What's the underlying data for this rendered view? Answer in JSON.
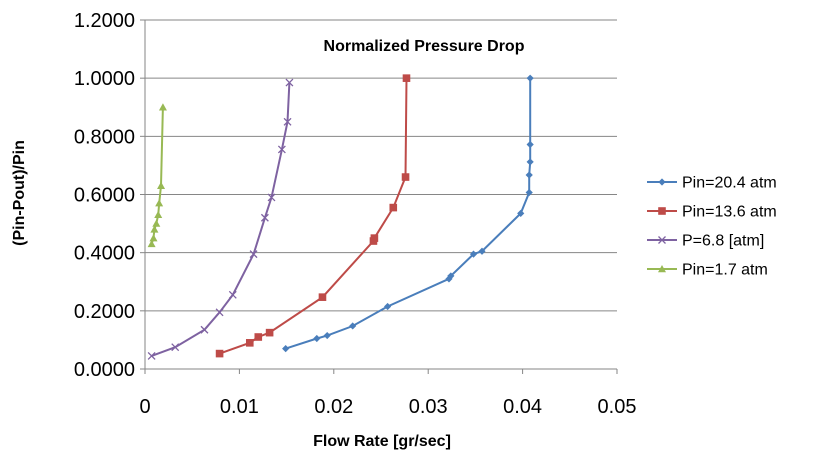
{
  "chart_data": {
    "type": "scatter",
    "title": "Normalized Pressure Drop",
    "xlabel": "Flow Rate [gr/sec]",
    "ylabel": "(Pin-Pout)/Pin",
    "xlim": [
      0,
      0.05
    ],
    "ylim": [
      0,
      1.2
    ],
    "x_ticks": [
      "0",
      "0.01",
      "0.02",
      "0.03",
      "0.04",
      "0.05"
    ],
    "y_ticks": [
      "0.0000",
      "0.2000",
      "0.4000",
      "0.6000",
      "0.8000",
      "1.0000",
      "1.2000"
    ],
    "grid": "horizontal",
    "legend_position": "right",
    "series": [
      {
        "name": "Pin=20.4 atm",
        "color": "#4a7ebb",
        "marker": "diamond",
        "x": [
          0.0149,
          0.0182,
          0.0193,
          0.022,
          0.0257,
          0.0322,
          0.0324,
          0.0348,
          0.0357,
          0.0398,
          0.0407,
          0.0407,
          0.0408,
          0.0408,
          0.0408
        ],
        "y": [
          0.07,
          0.105,
          0.115,
          0.148,
          0.215,
          0.31,
          0.32,
          0.395,
          0.405,
          0.535,
          0.607,
          0.667,
          0.712,
          0.772,
          1.0
        ]
      },
      {
        "name": "Pin=13.6 atm",
        "color": "#be4b48",
        "marker": "square",
        "x": [
          0.0079,
          0.0111,
          0.012,
          0.0132,
          0.0188,
          0.0242,
          0.0243,
          0.0263,
          0.0276,
          0.0277
        ],
        "y": [
          0.053,
          0.09,
          0.11,
          0.125,
          0.247,
          0.44,
          0.45,
          0.555,
          0.66,
          1.0
        ]
      },
      {
        "name": "P=6.8 [atm]",
        "color": "#7e62a1",
        "marker": "x",
        "x": [
          0.0007,
          0.0032,
          0.0063,
          0.0079,
          0.0093,
          0.0115,
          0.0127,
          0.0134,
          0.0145,
          0.0151,
          0.0153
        ],
        "y": [
          0.045,
          0.075,
          0.135,
          0.195,
          0.255,
          0.395,
          0.52,
          0.59,
          0.755,
          0.85,
          0.985
        ]
      },
      {
        "name": "Pin=1.7 atm",
        "color": "#98b954",
        "marker": "triangle",
        "x": [
          0.0007,
          0.0009,
          0.001,
          0.0012,
          0.0014,
          0.0015,
          0.0017,
          0.0019
        ],
        "y": [
          0.43,
          0.45,
          0.48,
          0.5,
          0.53,
          0.57,
          0.63,
          0.9
        ]
      }
    ]
  }
}
